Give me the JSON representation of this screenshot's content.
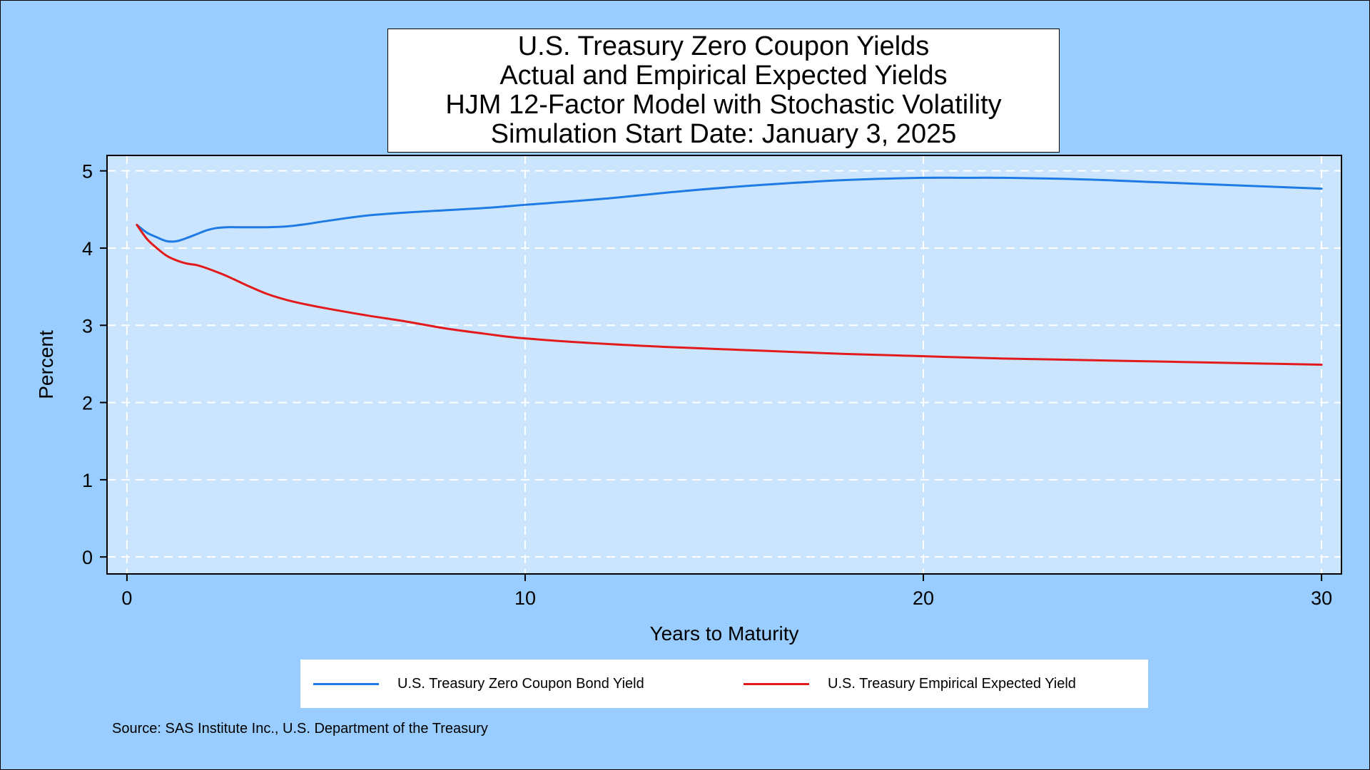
{
  "chart_data": {
    "type": "line",
    "title": [
      "U.S. Treasury Zero Coupon Yields",
      "Actual and Empirical Expected Yields",
      "HJM 12-Factor Model with Stochastic Volatility",
      "Simulation Start Date: January 3, 2025"
    ],
    "xlabel": "Years to Maturity",
    "ylabel": "Percent",
    "xlim": [
      -0.5,
      30.5
    ],
    "ylim": [
      -0.22,
      5.2
    ],
    "xticks": [
      0,
      10,
      20,
      30
    ],
    "yticks": [
      0,
      1,
      2,
      3,
      4,
      5
    ],
    "grid": true,
    "legend_position": "bottom",
    "series": [
      {
        "name": "U.S. Treasury Zero Coupon Bond Yield",
        "color": "#1e7be6",
        "x": [
          0.25,
          0.5,
          0.75,
          1,
          1.25,
          1.5,
          1.75,
          2,
          2.25,
          2.5,
          2.75,
          3,
          3.5,
          4,
          4.5,
          5,
          6,
          7,
          8,
          9,
          10,
          12,
          14,
          16,
          18,
          20,
          21,
          22,
          24,
          26,
          28,
          30
        ],
        "y": [
          4.3,
          4.2,
          4.14,
          4.09,
          4.09,
          4.13,
          4.18,
          4.23,
          4.26,
          4.27,
          4.27,
          4.27,
          4.27,
          4.28,
          4.31,
          4.35,
          4.42,
          4.46,
          4.49,
          4.52,
          4.56,
          4.64,
          4.74,
          4.82,
          4.88,
          4.91,
          4.91,
          4.91,
          4.89,
          4.85,
          4.81,
          4.77
        ]
      },
      {
        "name": "U.S. Treasury Empirical Expected Yield",
        "color": "#e31a1c",
        "x": [
          0.25,
          0.5,
          0.75,
          1,
          1.25,
          1.5,
          1.75,
          2,
          2.5,
          3,
          3.5,
          4,
          4.5,
          5,
          6,
          7,
          8,
          9,
          10,
          12,
          14,
          16,
          18,
          20,
          22,
          24,
          26,
          28,
          30
        ],
        "y": [
          4.3,
          4.12,
          4.0,
          3.9,
          3.84,
          3.8,
          3.78,
          3.74,
          3.64,
          3.52,
          3.41,
          3.33,
          3.27,
          3.22,
          3.13,
          3.05,
          2.96,
          2.89,
          2.83,
          2.76,
          2.71,
          2.67,
          2.63,
          2.6,
          2.57,
          2.55,
          2.53,
          2.51,
          2.49
        ]
      }
    ]
  },
  "source": "Source: SAS Institute Inc., U.S. Department of the Treasury"
}
